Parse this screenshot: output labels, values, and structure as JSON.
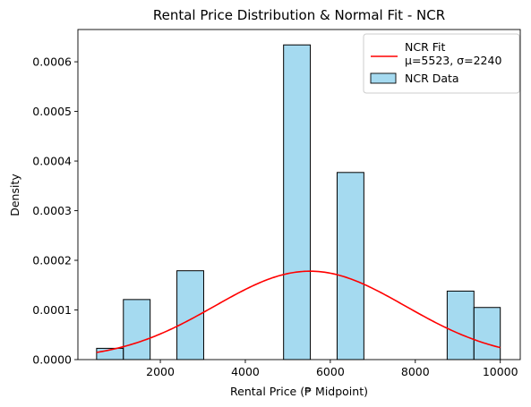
{
  "chart_data": {
    "type": "bar",
    "title": "Rental Price Distribution & Normal Fit - NCR",
    "xlabel": "Rental Price (₱ Midpoint)",
    "ylabel": "Density",
    "xlim": [
      60,
      10470
    ],
    "ylim": [
      0,
      0.000665
    ],
    "xticks": [
      2000,
      4000,
      6000,
      8000,
      10000
    ],
    "yticks": [
      0,
      0.0001,
      0.0002,
      0.0003,
      0.0004,
      0.0005,
      0.0006
    ],
    "xtick_labels": [
      "2000",
      "4000",
      "6000",
      "8000",
      "10000"
    ],
    "ytick_labels": [
      "0.0000",
      "0.0001",
      "0.0002",
      "0.0003",
      "0.0004",
      "0.0005",
      "0.0006"
    ],
    "grid": false,
    "legend_placement": "top-right",
    "histogram": {
      "name": "NCR Data",
      "color": "#87ceeb",
      "edge_color": "#000000",
      "bins": [
        {
          "x0": 500,
          "x1": 1130,
          "density": 2.27e-05
        },
        {
          "x0": 1130,
          "x1": 1760,
          "density": 0.000121
        },
        {
          "x0": 2390,
          "x1": 3020,
          "density": 0.000179
        },
        {
          "x0": 4900,
          "x1": 5530,
          "density": 0.000634
        },
        {
          "x0": 6160,
          "x1": 6790,
          "density": 0.000377
        },
        {
          "x0": 8750,
          "x1": 9380,
          "density": 0.000138
        },
        {
          "x0": 9380,
          "x1": 10000,
          "density": 0.000105
        }
      ]
    },
    "fit": {
      "name_line1": "NCR Fit",
      "name_line2": "μ=5523, σ=2240",
      "mu": 5523,
      "sigma": 2240,
      "x_range": [
        500,
        10000
      ],
      "color": "#ff0000"
    }
  }
}
